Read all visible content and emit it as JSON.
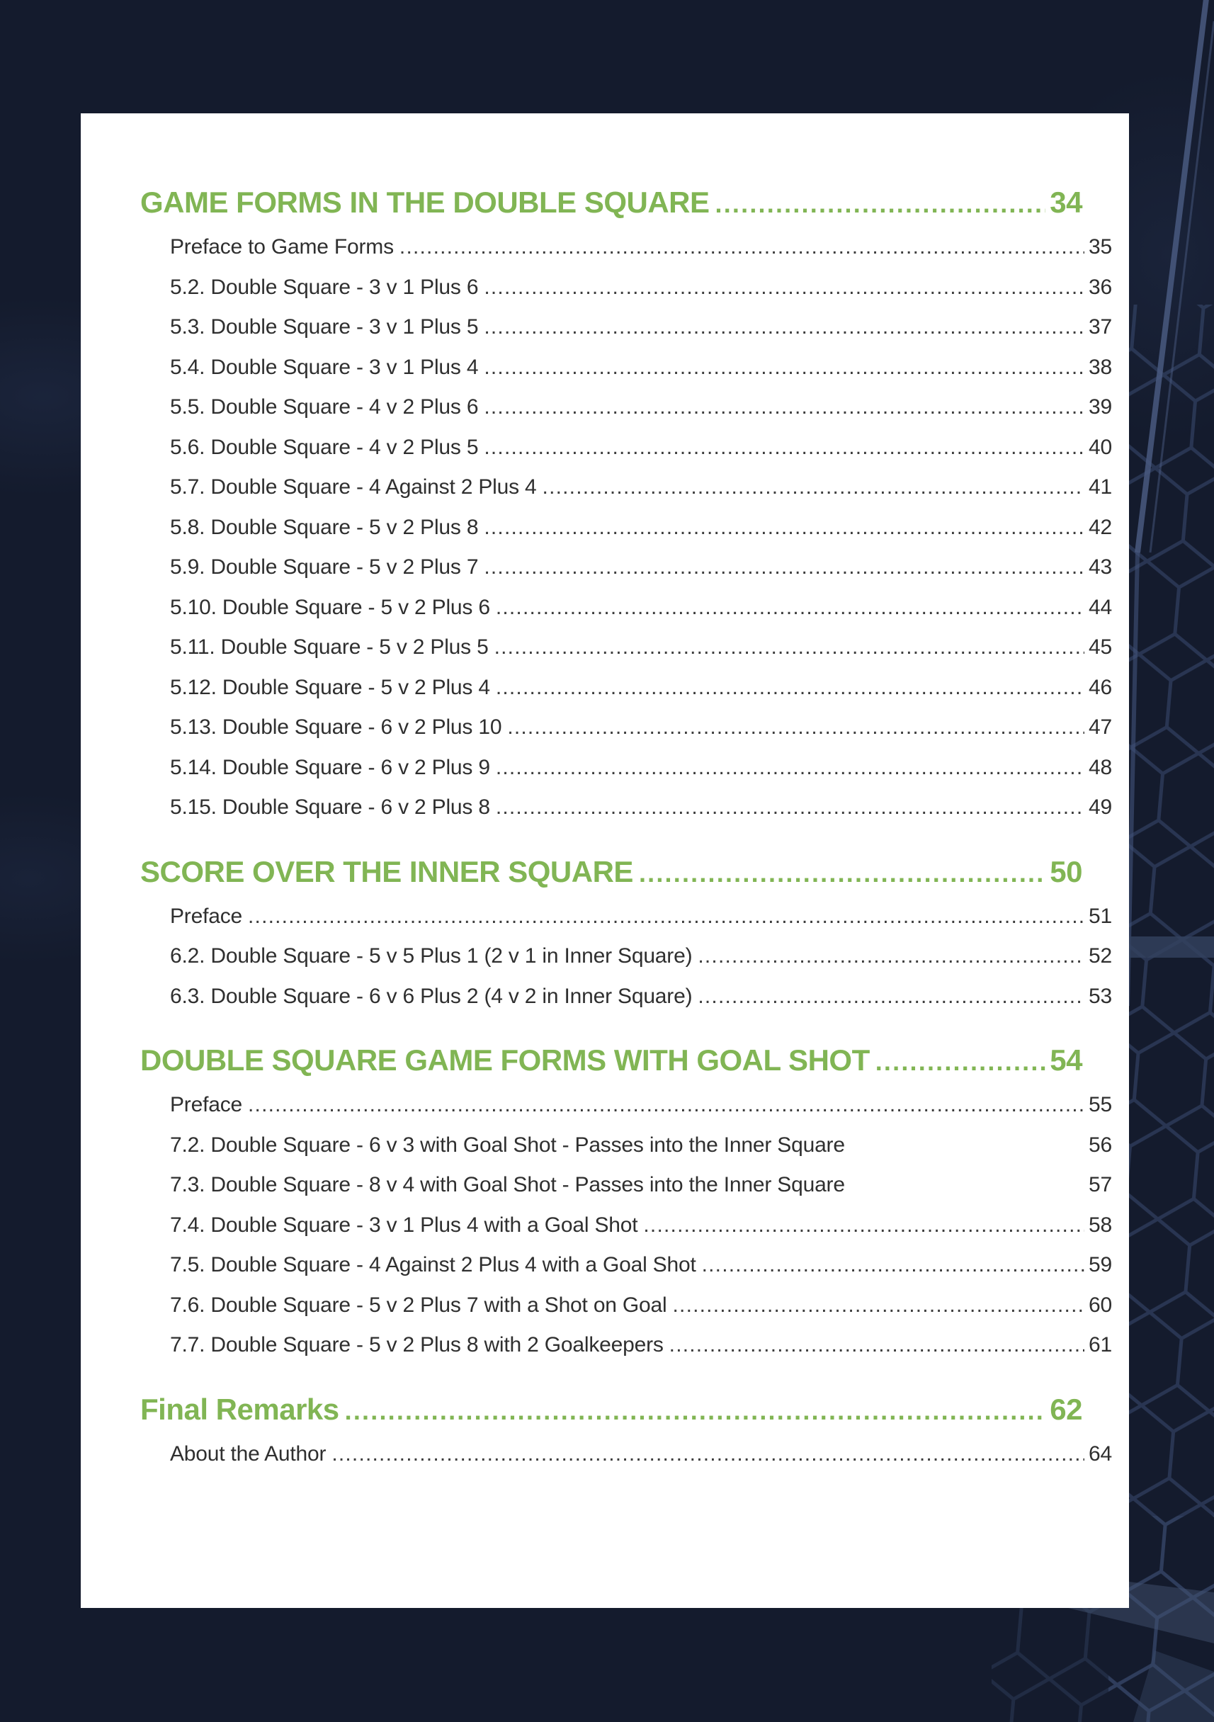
{
  "colors": {
    "background_navy": "#141b2d",
    "paper_white": "#ffffff",
    "accent_green": "#81b554",
    "body_text": "#2f2f2f",
    "net_line": "#3a4b70"
  },
  "decor": {
    "background_theme": "soccer-goal-net-photo"
  },
  "toc": {
    "sections": [
      {
        "title": "GAME FORMS IN THE DOUBLE SQUARE",
        "page": "34",
        "entries": [
          {
            "label": "Preface to Game Forms",
            "page": "35",
            "leader": true
          },
          {
            "label": "5.2. Double Square - 3 v 1 Plus 6",
            "page": "36",
            "leader": true
          },
          {
            "label": "5.3. Double Square - 3 v 1 Plus 5",
            "page": "37",
            "leader": true
          },
          {
            "label": "5.4. Double Square - 3 v 1 Plus 4",
            "page": "38",
            "leader": true
          },
          {
            "label": "5.5. Double Square - 4 v 2 Plus 6",
            "page": "39",
            "leader": true
          },
          {
            "label": "5.6. Double Square - 4 v 2 Plus 5",
            "page": "40",
            "leader": true
          },
          {
            "label": "5.7. Double Square - 4 Against 2 Plus 4",
            "page": "41",
            "leader": true
          },
          {
            "label": "5.8. Double Square - 5 v 2 Plus 8",
            "page": "42",
            "leader": true
          },
          {
            "label": "5.9. Double Square - 5 v 2 Plus 7",
            "page": "43",
            "leader": true
          },
          {
            "label": "5.10. Double Square - 5 v 2 Plus 6",
            "page": "44",
            "leader": true
          },
          {
            "label": "5.11. Double Square - 5 v 2 Plus 5",
            "page": "45",
            "leader": true
          },
          {
            "label": "5.12. Double Square - 5 v 2 Plus 4",
            "page": "46",
            "leader": true
          },
          {
            "label": "5.13. Double Square - 6 v 2 Plus 10",
            "page": "47",
            "leader": true
          },
          {
            "label": "5.14. Double Square - 6 v 2 Plus 9",
            "page": "48",
            "leader": true
          },
          {
            "label": "5.15. Double Square - 6 v 2 Plus 8",
            "page": "49",
            "leader": true
          }
        ]
      },
      {
        "title": "SCORE OVER THE INNER SQUARE",
        "page": "50",
        "entries": [
          {
            "label": "Preface",
            "page": "51",
            "leader": true
          },
          {
            "label": "6.2. Double Square - 5 v 5 Plus 1 (2 v 1 in Inner Square)",
            "page": "52",
            "leader": true
          },
          {
            "label": "6.3. Double Square - 6 v 6 Plus 2 (4 v 2 in Inner Square)",
            "page": "53",
            "leader": true
          }
        ]
      },
      {
        "title": "DOUBLE SQUARE GAME FORMS WITH GOAL SHOT",
        "page": "54",
        "entries": [
          {
            "label": "Preface",
            "page": "55",
            "leader": true
          },
          {
            "label": "7.2. Double Square - 6 v 3 with Goal Shot - Passes into the Inner Square",
            "page": "56",
            "leader": false
          },
          {
            "label": "7.3. Double Square - 8 v 4 with Goal Shot - Passes into the Inner Square",
            "page": "57",
            "leader": false
          },
          {
            "label": "7.4. Double Square - 3 v 1 Plus 4 with a Goal Shot",
            "page": "58",
            "leader": true
          },
          {
            "label": "7.5. Double Square - 4 Against 2 Plus 4 with a Goal Shot",
            "page": "59",
            "leader": true
          },
          {
            "label": "7.6. Double Square - 5 v 2 Plus 7 with a Shot on Goal",
            "page": "60",
            "leader": true
          },
          {
            "label": "7.7. Double Square - 5 v 2 Plus 8 with 2 Goalkeepers",
            "page": "61",
            "leader": true
          }
        ]
      },
      {
        "title": "Final Remarks",
        "page": "62",
        "entries": [
          {
            "label": "About the Author",
            "page": "64",
            "leader": true
          }
        ]
      }
    ]
  }
}
